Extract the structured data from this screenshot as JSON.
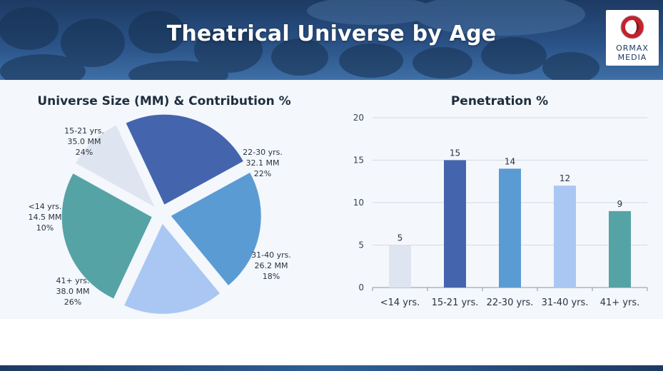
{
  "header": {
    "title": "Theatrical Universe by Age",
    "logo_line1": "ORMAX",
    "logo_line2": "MEDIA"
  },
  "colors": {
    "lt14": "#dfe5f0",
    "a15_21": "#4464ad",
    "a22_30": "#5b9bd3",
    "a31_40": "#a9c7f2",
    "a41p": "#56a3a6"
  },
  "chart_data": [
    {
      "type": "pie",
      "title": "Universe Size (MM) & Contribution %",
      "slices": [
        {
          "label": "15-21 yrs.",
          "value": 35.0,
          "value_text": "35.0 MM",
          "percent": 24,
          "percent_text": "24%"
        },
        {
          "label": "22-30 yrs.",
          "value": 32.1,
          "value_text": "32.1 MM",
          "percent": 22,
          "percent_text": "22%"
        },
        {
          "label": "31-40 yrs.",
          "value": 26.2,
          "value_text": "26.2 MM",
          "percent": 18,
          "percent_text": "18%"
        },
        {
          "label": "41+ yrs.",
          "value": 38.0,
          "value_text": "38.0 MM",
          "percent": 26,
          "percent_text": "26%"
        },
        {
          "label": "<14 yrs.",
          "value": 14.5,
          "value_text": "14.5 MM",
          "percent": 10,
          "percent_text": "10%"
        }
      ],
      "exploded": true
    },
    {
      "type": "bar",
      "title": "Penetration %",
      "categories": [
        "<14 yrs.",
        "15-21 yrs.",
        "22-30 yrs.",
        "31-40 yrs.",
        "41+ yrs."
      ],
      "values": [
        5,
        15,
        14,
        12,
        9
      ],
      "data_labels": [
        "5",
        "15",
        "14",
        "12",
        "9"
      ],
      "ylim": [
        0,
        20
      ],
      "yticks": [
        0,
        5,
        10,
        15,
        20
      ],
      "grid": true
    }
  ]
}
